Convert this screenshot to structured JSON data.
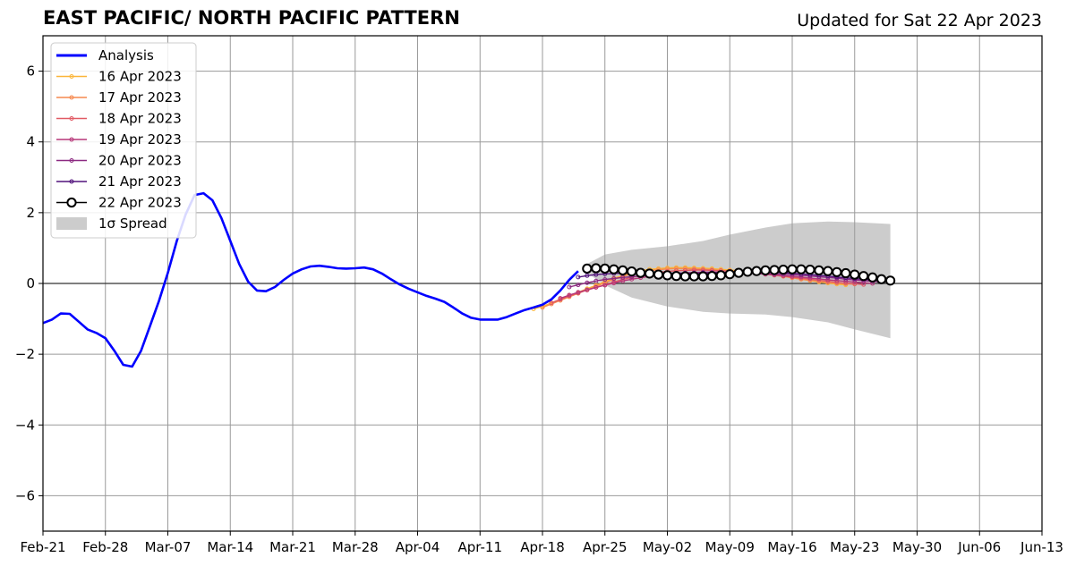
{
  "title": "EAST PACIFIC/ NORTH PACIFIC PATTERN",
  "subtitle": "Updated for Sat 22 Apr 2023",
  "chart_data": {
    "type": "line",
    "title": "EAST PACIFIC/ NORTH PACIFIC PATTERN",
    "xlabel": "",
    "ylabel": "",
    "ylim": [
      -7,
      7
    ],
    "xlim": [
      "2023-02-21",
      "2023-06-13"
    ],
    "yticks": [
      -6,
      -4,
      -2,
      0,
      2,
      4,
      6
    ],
    "ytick_labels": [
      "−6",
      "−4",
      "−2",
      "0",
      "2",
      "4",
      "6"
    ],
    "xticks": [
      "Feb-21",
      "Feb-28",
      "Mar-07",
      "Mar-14",
      "Mar-21",
      "Mar-28",
      "Apr-04",
      "Apr-11",
      "Apr-18",
      "Apr-25",
      "May-02",
      "May-09",
      "May-16",
      "May-23",
      "May-30",
      "Jun-06",
      "Jun-13"
    ],
    "grid": true,
    "legend_position": "top-left",
    "series": [
      {
        "name": "Analysis",
        "color": "#0000ff",
        "x": [
          "2023-02-21",
          "2023-02-22",
          "2023-02-23",
          "2023-02-24",
          "2023-02-25",
          "2023-02-26",
          "2023-02-27",
          "2023-02-28",
          "2023-03-01",
          "2023-03-02",
          "2023-03-03",
          "2023-03-04",
          "2023-03-05",
          "2023-03-06",
          "2023-03-07",
          "2023-03-08",
          "2023-03-09",
          "2023-03-10",
          "2023-03-11",
          "2023-03-12",
          "2023-03-13",
          "2023-03-14",
          "2023-03-15",
          "2023-03-16",
          "2023-03-17",
          "2023-03-18",
          "2023-03-19",
          "2023-03-20",
          "2023-03-21",
          "2023-03-22",
          "2023-03-23",
          "2023-03-24",
          "2023-03-25",
          "2023-03-26",
          "2023-03-27",
          "2023-03-28",
          "2023-03-29",
          "2023-03-30",
          "2023-03-31",
          "2023-04-01",
          "2023-04-02",
          "2023-04-03",
          "2023-04-04",
          "2023-04-05",
          "2023-04-06",
          "2023-04-07",
          "2023-04-08",
          "2023-04-09",
          "2023-04-10",
          "2023-04-11",
          "2023-04-12",
          "2023-04-13",
          "2023-04-14",
          "2023-04-15",
          "2023-04-16",
          "2023-04-17",
          "2023-04-18",
          "2023-04-19",
          "2023-04-20",
          "2023-04-21",
          "2023-04-22"
        ],
        "values": [
          -1.12,
          -1.02,
          -0.85,
          -0.86,
          -1.08,
          -1.3,
          -1.4,
          -1.55,
          -1.9,
          -2.3,
          -2.35,
          -1.9,
          -1.2,
          -0.5,
          0.3,
          1.2,
          1.95,
          2.5,
          2.55,
          2.35,
          1.85,
          1.2,
          0.55,
          0.05,
          -0.2,
          -0.22,
          -0.1,
          0.1,
          0.28,
          0.4,
          0.48,
          0.5,
          0.47,
          0.43,
          0.42,
          0.43,
          0.45,
          0.4,
          0.28,
          0.12,
          -0.03,
          -0.15,
          -0.25,
          -0.35,
          -0.43,
          -0.52,
          -0.68,
          -0.85,
          -0.97,
          -1.02,
          -1.02,
          -1.02,
          -0.95,
          -0.85,
          -0.75,
          -0.68,
          -0.6,
          -0.45,
          -0.2,
          0.1,
          0.35
        ]
      },
      {
        "name": "16 Apr 2023",
        "color": "#fbb63a",
        "x": [
          "2023-04-17",
          "2023-04-18",
          "2023-04-19",
          "2023-04-20",
          "2023-04-21",
          "2023-04-22",
          "2023-04-23",
          "2023-04-24",
          "2023-04-25",
          "2023-04-26",
          "2023-04-27",
          "2023-04-28",
          "2023-04-29",
          "2023-04-30",
          "2023-05-01",
          "2023-05-02",
          "2023-05-03",
          "2023-05-04",
          "2023-05-05",
          "2023-05-06",
          "2023-05-07",
          "2023-05-08",
          "2023-05-09",
          "2023-05-10",
          "2023-05-11",
          "2023-05-12",
          "2023-05-13",
          "2023-05-14",
          "2023-05-15",
          "2023-05-16",
          "2023-05-17",
          "2023-05-18",
          "2023-05-19",
          "2023-05-20",
          "2023-05-21",
          "2023-05-22"
        ],
        "values": [
          -0.72,
          -0.65,
          -0.55,
          -0.45,
          -0.35,
          -0.25,
          -0.15,
          -0.05,
          0.05,
          0.15,
          0.22,
          0.3,
          0.36,
          0.4,
          0.42,
          0.44,
          0.45,
          0.45,
          0.44,
          0.43,
          0.42,
          0.4,
          0.38,
          0.36,
          0.34,
          0.31,
          0.28,
          0.24,
          0.2,
          0.16,
          0.12,
          0.08,
          0.04,
          0.01,
          -0.02,
          -0.04
        ]
      },
      {
        "name": "17 Apr 2023",
        "color": "#f6894f",
        "x": [
          "2023-04-18",
          "2023-04-19",
          "2023-04-20",
          "2023-04-21",
          "2023-04-22",
          "2023-04-23",
          "2023-04-24",
          "2023-04-25",
          "2023-04-26",
          "2023-04-27",
          "2023-04-28",
          "2023-04-29",
          "2023-04-30",
          "2023-05-01",
          "2023-05-02",
          "2023-05-03",
          "2023-05-04",
          "2023-05-05",
          "2023-05-06",
          "2023-05-07",
          "2023-05-08",
          "2023-05-09",
          "2023-05-10",
          "2023-05-11",
          "2023-05-12",
          "2023-05-13",
          "2023-05-14",
          "2023-05-15",
          "2023-05-16",
          "2023-05-17",
          "2023-05-18",
          "2023-05-19",
          "2023-05-20",
          "2023-05-21",
          "2023-05-22",
          "2023-05-23"
        ],
        "values": [
          -0.68,
          -0.58,
          -0.48,
          -0.38,
          -0.28,
          -0.18,
          -0.08,
          0.02,
          0.12,
          0.2,
          0.27,
          0.32,
          0.36,
          0.39,
          0.41,
          0.42,
          0.42,
          0.41,
          0.4,
          0.39,
          0.37,
          0.35,
          0.33,
          0.31,
          0.29,
          0.26,
          0.23,
          0.2,
          0.16,
          0.12,
          0.09,
          0.06,
          0.03,
          0.01,
          -0.01,
          -0.02
        ]
      },
      {
        "name": "18 Apr 2023",
        "color": "#e15a64",
        "x": [
          "2023-04-19",
          "2023-04-20",
          "2023-04-21",
          "2023-04-22",
          "2023-04-23",
          "2023-04-24",
          "2023-04-25",
          "2023-04-26",
          "2023-04-27",
          "2023-04-28",
          "2023-04-29",
          "2023-04-30",
          "2023-05-01",
          "2023-05-02",
          "2023-05-03",
          "2023-05-04",
          "2023-05-05",
          "2023-05-06",
          "2023-05-07",
          "2023-05-08",
          "2023-05-09",
          "2023-05-10",
          "2023-05-11",
          "2023-05-12",
          "2023-05-13",
          "2023-05-14",
          "2023-05-15",
          "2023-05-16",
          "2023-05-17",
          "2023-05-18",
          "2023-05-19",
          "2023-05-20",
          "2023-05-21",
          "2023-05-22",
          "2023-05-23",
          "2023-05-24"
        ],
        "values": [
          -0.55,
          -0.45,
          -0.35,
          -0.27,
          -0.19,
          -0.11,
          -0.04,
          0.04,
          0.11,
          0.17,
          0.22,
          0.27,
          0.31,
          0.34,
          0.36,
          0.37,
          0.38,
          0.38,
          0.37,
          0.36,
          0.35,
          0.33,
          0.31,
          0.29,
          0.27,
          0.24,
          0.21,
          0.18,
          0.15,
          0.12,
          0.09,
          0.06,
          0.03,
          0.01,
          -0.01,
          -0.03
        ]
      },
      {
        "name": "19 Apr 2023",
        "color": "#b73779",
        "x": [
          "2023-04-20",
          "2023-04-21",
          "2023-04-22",
          "2023-04-23",
          "2023-04-24",
          "2023-04-25",
          "2023-04-26",
          "2023-04-27",
          "2023-04-28",
          "2023-04-29",
          "2023-04-30",
          "2023-05-01",
          "2023-05-02",
          "2023-05-03",
          "2023-05-04",
          "2023-05-05",
          "2023-05-06",
          "2023-05-07",
          "2023-05-08",
          "2023-05-09",
          "2023-05-10",
          "2023-05-11",
          "2023-05-12",
          "2023-05-13",
          "2023-05-14",
          "2023-05-15",
          "2023-05-16",
          "2023-05-17",
          "2023-05-18",
          "2023-05-19",
          "2023-05-20",
          "2023-05-21",
          "2023-05-22",
          "2023-05-23",
          "2023-05-24",
          "2023-05-25"
        ],
        "values": [
          -0.42,
          -0.33,
          -0.25,
          -0.18,
          -0.11,
          -0.05,
          0.01,
          0.07,
          0.12,
          0.16,
          0.2,
          0.23,
          0.26,
          0.28,
          0.3,
          0.31,
          0.32,
          0.32,
          0.32,
          0.31,
          0.3,
          0.29,
          0.28,
          0.26,
          0.24,
          0.22,
          0.2,
          0.18,
          0.15,
          0.13,
          0.1,
          0.08,
          0.06,
          0.04,
          0.02,
          0.0
        ]
      },
      {
        "name": "20 Apr 2023",
        "color": "#8c2981",
        "x": [
          "2023-04-21",
          "2023-04-22",
          "2023-04-23",
          "2023-04-24",
          "2023-04-25",
          "2023-04-26",
          "2023-04-27",
          "2023-04-28",
          "2023-04-29",
          "2023-04-30",
          "2023-05-01",
          "2023-05-02",
          "2023-05-03",
          "2023-05-04",
          "2023-05-05",
          "2023-05-06",
          "2023-05-07",
          "2023-05-08",
          "2023-05-09",
          "2023-05-10",
          "2023-05-11",
          "2023-05-12",
          "2023-05-13",
          "2023-05-14",
          "2023-05-15",
          "2023-05-16",
          "2023-05-17",
          "2023-05-18",
          "2023-05-19",
          "2023-05-20",
          "2023-05-21",
          "2023-05-22",
          "2023-05-23",
          "2023-05-24",
          "2023-05-25",
          "2023-05-26"
        ],
        "values": [
          -0.1,
          -0.04,
          0.02,
          0.07,
          0.11,
          0.14,
          0.17,
          0.19,
          0.21,
          0.23,
          0.24,
          0.25,
          0.26,
          0.27,
          0.28,
          0.28,
          0.29,
          0.29,
          0.29,
          0.29,
          0.29,
          0.28,
          0.28,
          0.27,
          0.26,
          0.25,
          0.23,
          0.21,
          0.19,
          0.17,
          0.15,
          0.12,
          0.1,
          0.08,
          0.06,
          0.04
        ]
      },
      {
        "name": "21 Apr 2023",
        "color": "#51127c",
        "x": [
          "2023-04-22",
          "2023-04-23",
          "2023-04-24",
          "2023-04-25",
          "2023-04-26",
          "2023-04-27",
          "2023-04-28",
          "2023-04-29",
          "2023-04-30",
          "2023-05-01",
          "2023-05-02",
          "2023-05-03",
          "2023-05-04",
          "2023-05-05",
          "2023-05-06",
          "2023-05-07",
          "2023-05-08",
          "2023-05-09",
          "2023-05-10",
          "2023-05-11",
          "2023-05-12",
          "2023-05-13",
          "2023-05-14",
          "2023-05-15",
          "2023-05-16",
          "2023-05-17",
          "2023-05-18",
          "2023-05-19",
          "2023-05-20",
          "2023-05-21",
          "2023-05-22",
          "2023-05-23",
          "2023-05-24",
          "2023-05-25",
          "2023-05-26",
          "2023-05-27"
        ],
        "values": [
          0.18,
          0.22,
          0.25,
          0.27,
          0.28,
          0.29,
          0.29,
          0.29,
          0.29,
          0.29,
          0.29,
          0.29,
          0.29,
          0.29,
          0.3,
          0.3,
          0.31,
          0.31,
          0.32,
          0.32,
          0.32,
          0.32,
          0.31,
          0.3,
          0.29,
          0.27,
          0.25,
          0.23,
          0.21,
          0.18,
          0.16,
          0.14,
          0.12,
          0.1,
          0.08,
          0.06
        ]
      },
      {
        "name": "22 Apr 2023",
        "color": "#000000",
        "x": [
          "2023-04-23",
          "2023-04-24",
          "2023-04-25",
          "2023-04-26",
          "2023-04-27",
          "2023-04-28",
          "2023-04-29",
          "2023-04-30",
          "2023-05-01",
          "2023-05-02",
          "2023-05-03",
          "2023-05-04",
          "2023-05-05",
          "2023-05-06",
          "2023-05-07",
          "2023-05-08",
          "2023-05-09",
          "2023-05-10",
          "2023-05-11",
          "2023-05-12",
          "2023-05-13",
          "2023-05-14",
          "2023-05-15",
          "2023-05-16",
          "2023-05-17",
          "2023-05-18",
          "2023-05-19",
          "2023-05-20",
          "2023-05-21",
          "2023-05-22",
          "2023-05-23",
          "2023-05-24",
          "2023-05-25",
          "2023-05-26",
          "2023-05-27"
        ],
        "values": [
          0.42,
          0.43,
          0.42,
          0.4,
          0.37,
          0.34,
          0.3,
          0.28,
          0.25,
          0.23,
          0.21,
          0.2,
          0.2,
          0.2,
          0.21,
          0.23,
          0.26,
          0.3,
          0.33,
          0.35,
          0.37,
          0.38,
          0.39,
          0.4,
          0.4,
          0.39,
          0.37,
          0.35,
          0.32,
          0.29,
          0.25,
          0.21,
          0.17,
          0.12,
          0.08
        ]
      }
    ],
    "spread": {
      "name": "1σ Spread",
      "color": "#cccccc",
      "x": [
        "2023-04-23",
        "2023-04-25",
        "2023-04-28",
        "2023-05-02",
        "2023-05-06",
        "2023-05-09",
        "2023-05-13",
        "2023-05-16",
        "2023-05-20",
        "2023-05-23",
        "2023-05-27"
      ],
      "upper": [
        0.55,
        0.82,
        0.95,
        1.05,
        1.2,
        1.38,
        1.58,
        1.7,
        1.75,
        1.73,
        1.68
      ],
      "lower": [
        0.3,
        -0.05,
        -0.4,
        -0.65,
        -0.8,
        -0.85,
        -0.88,
        -0.95,
        -1.1,
        -1.3,
        -1.55
      ]
    },
    "legend": [
      {
        "label": "Analysis",
        "color": "#0000ff",
        "style": "thick"
      },
      {
        "label": "16 Apr 2023",
        "color": "#fbb63a",
        "style": "dot"
      },
      {
        "label": "17 Apr 2023",
        "color": "#f6894f",
        "style": "dot"
      },
      {
        "label": "18 Apr 2023",
        "color": "#e15a64",
        "style": "dot"
      },
      {
        "label": "19 Apr 2023",
        "color": "#b73779",
        "style": "dot"
      },
      {
        "label": "20 Apr 2023",
        "color": "#8c2981",
        "style": "dot"
      },
      {
        "label": "21 Apr 2023",
        "color": "#51127c",
        "style": "dot"
      },
      {
        "label": "22 Apr 2023",
        "color": "#000000",
        "style": "circle"
      },
      {
        "label": "1σ Spread",
        "color": "#cccccc",
        "style": "patch"
      }
    ]
  }
}
